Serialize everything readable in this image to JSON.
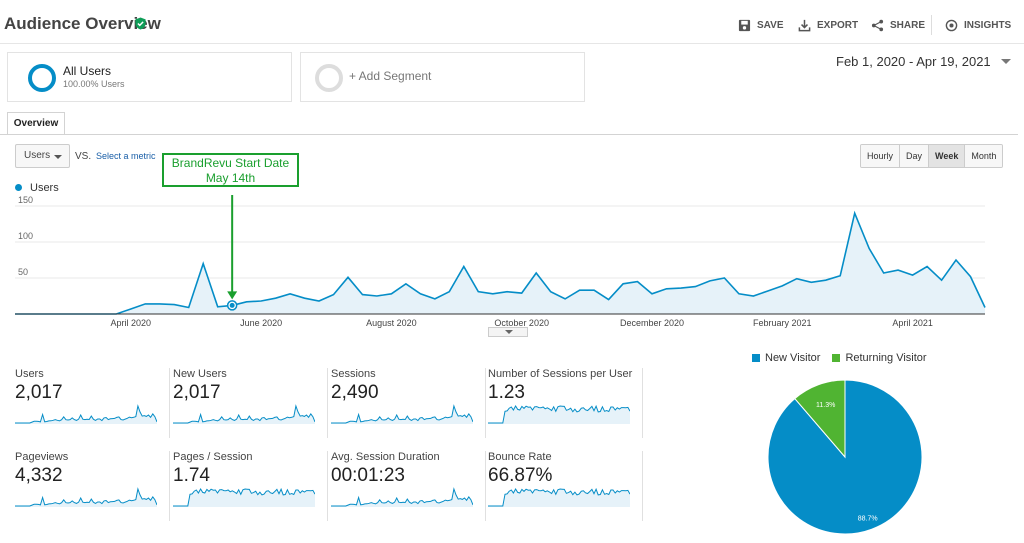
{
  "header": {
    "title": "Audience Overview",
    "save": "SAVE",
    "export": "EXPORT",
    "share": "SHARE",
    "insights": "INSIGHTS"
  },
  "segments": {
    "all_users": {
      "name": "All Users",
      "percent": "100.00% Users"
    },
    "add_segment": "+ Add Segment"
  },
  "date_range": "Feb 1, 2020 - Apr 19, 2021",
  "tabs": [
    "Overview"
  ],
  "metric_controls": {
    "metric": "Users",
    "vs": "VS.",
    "select_metric": "Select a metric",
    "granularity": [
      "Hourly",
      "Day",
      "Week",
      "Month"
    ],
    "selected_granularity": "Week"
  },
  "annotation": {
    "line1": "BrandRevu Start Date",
    "line2": "May 14th",
    "marked_week": 15
  },
  "colors": {
    "series": "#058dc7",
    "returning": "#50b432",
    "annotation": "#1a9f2e"
  },
  "chart_data": {
    "type": "area",
    "legend": [
      "Users"
    ],
    "y_ticks": [
      "150",
      "100",
      "50"
    ],
    "ylim": [
      0,
      150
    ],
    "x_ticks": [
      "April 2020",
      "June 2020",
      "August 2020",
      "October 2020",
      "December 2020",
      "February 2021",
      "April 2021"
    ],
    "series": [
      {
        "name": "Users",
        "values": [
          0,
          0,
          0,
          0,
          0,
          0,
          0,
          0,
          7,
          14,
          14,
          13,
          9,
          70,
          10,
          12,
          17,
          18,
          22,
          28,
          22,
          18,
          27,
          51,
          27,
          25,
          28,
          42,
          28,
          21,
          31,
          66,
          31,
          28,
          31,
          29,
          57,
          31,
          21,
          33,
          33,
          20,
          42,
          45,
          28,
          35,
          36,
          38,
          46,
          50,
          28,
          25,
          32,
          39,
          49,
          44,
          47,
          53,
          140,
          91,
          57,
          61,
          54,
          66,
          47,
          75,
          52,
          9
        ]
      }
    ]
  },
  "metrics": [
    {
      "label": "Users",
      "value": "2,017"
    },
    {
      "label": "New Users",
      "value": "2,017"
    },
    {
      "label": "Sessions",
      "value": "2,490"
    },
    {
      "label": "Number of Sessions per User",
      "value": "1.23"
    },
    {
      "label": "Pageviews",
      "value": "4,332"
    },
    {
      "label": "Pages / Session",
      "value": "1.74"
    },
    {
      "label": "Avg. Session Duration",
      "value": "00:01:23"
    },
    {
      "label": "Bounce Rate",
      "value": "66.87%"
    }
  ],
  "pie": {
    "legend": [
      "New Visitor",
      "Returning Visitor"
    ],
    "slices": [
      {
        "name": "New Visitor",
        "value": 88.7,
        "label": "88.7%"
      },
      {
        "name": "Returning Visitor",
        "value": 11.3,
        "label": "11.3%"
      }
    ]
  }
}
